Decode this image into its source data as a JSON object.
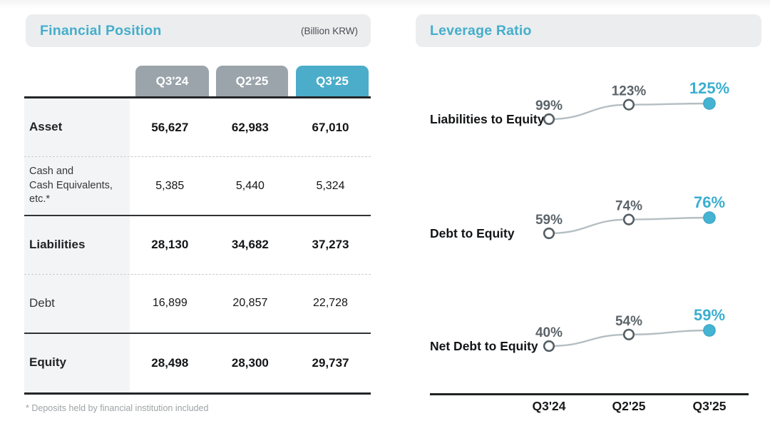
{
  "colors": {
    "accent_teal": "#45AECB",
    "tab_gray": "#9AA4AA",
    "highlight_dot": "#45B4D2",
    "trend_line_gray": "#B5BEC2",
    "header_pill_bg": "#EBEDEF",
    "label_column_bg": "#F3F4F5"
  },
  "left_panel": {
    "title": "Financial Position",
    "unit": "(Billion KRW)",
    "columns": [
      "Q3'24",
      "Q2'25",
      "Q3'25"
    ],
    "rows": [
      {
        "label": "Asset",
        "values": [
          "56,627",
          "62,983",
          "67,010"
        ]
      },
      {
        "label": "Cash and\nCash Equivalents,\netc.*",
        "values": [
          "5,385",
          "5,440",
          "5,324"
        ]
      },
      {
        "label": "Liabilities",
        "values": [
          "28,130",
          "34,682",
          "37,273"
        ]
      },
      {
        "label": "Debt",
        "values": [
          "16,899",
          "20,857",
          "22,728"
        ]
      },
      {
        "label": "Equity",
        "values": [
          "28,498",
          "28,300",
          "29,737"
        ]
      }
    ],
    "footnote": "* Deposits held by financial institution included"
  },
  "right_panel": {
    "title": "Leverage Ratio",
    "x_labels": [
      "Q3'24",
      "Q2'25",
      "Q3'25"
    ]
  },
  "chart_data": [
    {
      "type": "line",
      "name": "Liabilities to Equity",
      "x": [
        "Q3'24",
        "Q2'25",
        "Q3'25"
      ],
      "values": [
        99,
        123,
        125
      ],
      "labels": [
        "99%",
        "123%",
        "125%"
      ],
      "unit": "%",
      "highlight_last": true
    },
    {
      "type": "line",
      "name": "Debt to Equity",
      "x": [
        "Q3'24",
        "Q2'25",
        "Q3'25"
      ],
      "values": [
        59,
        74,
        76
      ],
      "labels": [
        "59%",
        "74%",
        "76%"
      ],
      "unit": "%",
      "highlight_last": true
    },
    {
      "type": "line",
      "name": "Net Debt to Equity",
      "x": [
        "Q3'24",
        "Q2'25",
        "Q3'25"
      ],
      "values": [
        40,
        54,
        59
      ],
      "labels": [
        "40%",
        "54%",
        "59%"
      ],
      "unit": "%",
      "highlight_last": true
    }
  ]
}
